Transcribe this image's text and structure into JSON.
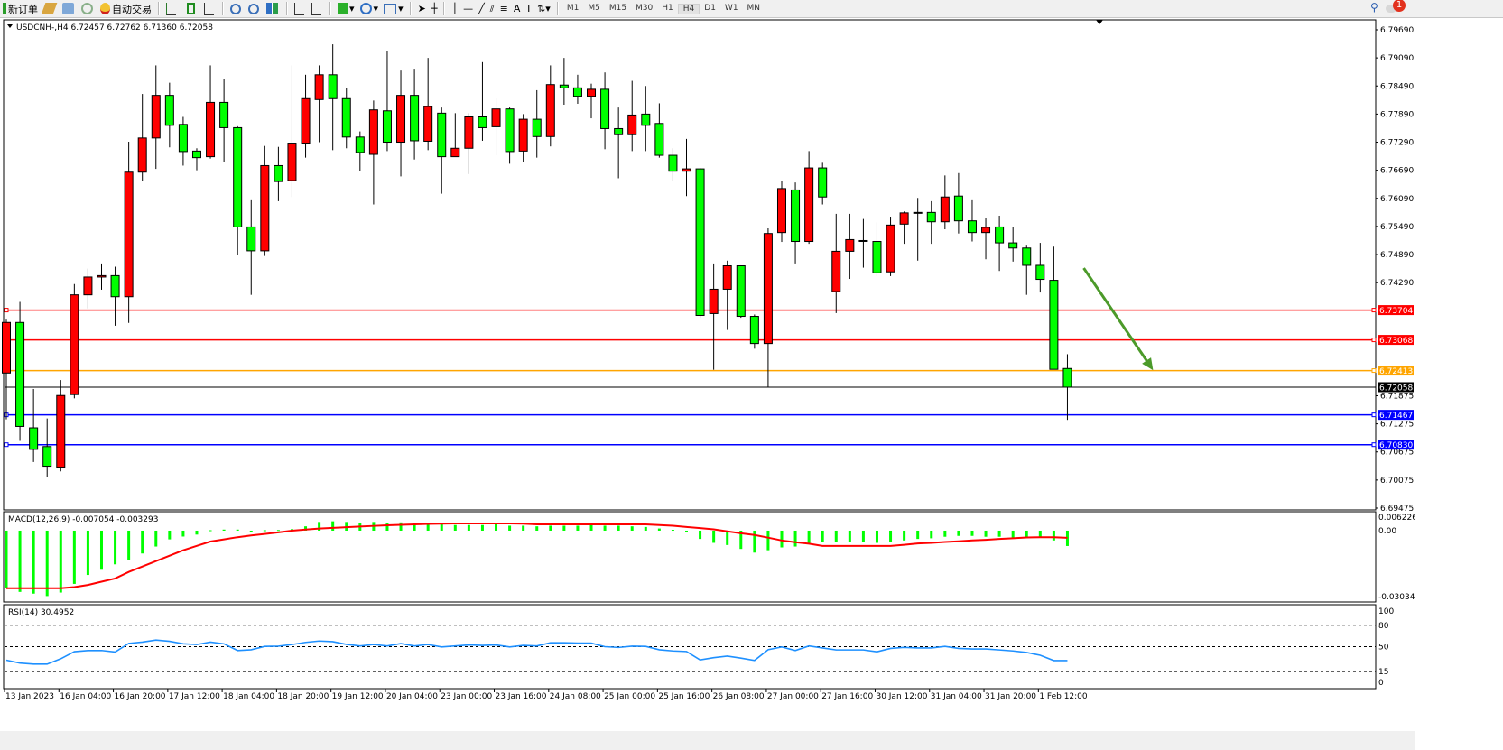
{
  "toolbar": {
    "new_order": "新订单",
    "auto_trading": "自动交易",
    "timeframes": [
      "M1",
      "M5",
      "M15",
      "M30",
      "H1",
      "H4",
      "D1",
      "W1",
      "MN"
    ],
    "active_timeframe": "H4",
    "notification_count": "1",
    "icons": [
      "new-order-icon",
      "strategy-folder-icon",
      "market-watch-icon",
      "signal-icon",
      "auto-trading-icon",
      "bar-chart-icon",
      "candlestick-icon",
      "line-chart-icon",
      "zoom-in-icon",
      "zoom-out-icon",
      "tile-windows-icon",
      "auto-scroll-icon",
      "chart-shift-icon",
      "indicators-icon",
      "periods-icon",
      "templates-icon",
      "cursor-icon",
      "crosshair-icon",
      "vertical-line-icon",
      "horizontal-line-icon",
      "trendline-icon",
      "equidistant-channel-icon",
      "fibonacci-icon",
      "text-icon",
      "text-label-icon",
      "arrows-icon",
      "search-icon",
      "chat-icon"
    ]
  },
  "chart_data": {
    "type": "candlestick",
    "header": "USDCNH-,H4  6.72457 6.72762 6.71360 6.72058",
    "colors": {
      "bull": "#ff0000",
      "bear": "#00ff00",
      "outline": "#000000",
      "macd_hist": "#00ff00",
      "macd_signal": "#ff0000",
      "rsi": "#1e90ff",
      "arrow": "#4c9a2a"
    },
    "candles_ohlc": [
      [
        6.7236,
        6.735,
        6.7137,
        6.7344
      ],
      [
        6.7344,
        6.7388,
        6.7091,
        6.7122
      ],
      [
        6.7119,
        6.7202,
        6.7046,
        6.7073
      ],
      [
        6.7079,
        6.7139,
        6.7013,
        6.7037
      ],
      [
        6.7035,
        6.7221,
        6.7026,
        6.7188
      ],
      [
        6.719,
        6.7426,
        6.7182,
        6.7403
      ],
      [
        6.7403,
        6.7459,
        6.7374,
        6.7441
      ],
      [
        6.7441,
        6.747,
        6.7414,
        6.7444
      ],
      [
        6.7444,
        6.7463,
        6.7337,
        6.7399
      ],
      [
        6.7399,
        6.773,
        6.7343,
        6.7665
      ],
      [
        6.7665,
        6.7832,
        6.7647,
        6.7738
      ],
      [
        6.7738,
        6.7893,
        6.7672,
        6.7829
      ],
      [
        6.7829,
        6.7856,
        6.7718,
        6.7765
      ],
      [
        6.7767,
        6.7783,
        6.7679,
        6.7709
      ],
      [
        6.771,
        6.7716,
        6.7669,
        6.7696
      ],
      [
        6.7698,
        6.7893,
        6.7694,
        6.7814
      ],
      [
        6.7814,
        6.7863,
        6.7687,
        6.776
      ],
      [
        6.776,
        6.7763,
        6.7488,
        6.7548
      ],
      [
        6.7548,
        6.7605,
        6.7403,
        6.7497
      ],
      [
        6.7497,
        6.7721,
        6.7486,
        6.7679
      ],
      [
        6.7679,
        6.7719,
        6.7603,
        6.7645
      ],
      [
        6.7647,
        6.7893,
        6.7612,
        6.7727
      ],
      [
        6.7727,
        6.7873,
        6.7696,
        6.7822
      ],
      [
        6.782,
        6.7893,
        6.7729,
        6.7873
      ],
      [
        6.7873,
        6.7938,
        6.7712,
        6.7822
      ],
      [
        6.7822,
        6.7845,
        6.7716,
        6.774
      ],
      [
        6.774,
        6.7752,
        6.7667,
        6.7707
      ],
      [
        6.7703,
        6.7818,
        6.7596,
        6.7798
      ],
      [
        6.7796,
        6.7924,
        6.771,
        6.7729
      ],
      [
        6.7729,
        6.7882,
        6.7656,
        6.7829
      ],
      [
        6.7829,
        6.7884,
        6.7692,
        6.7732
      ],
      [
        6.7731,
        6.7909,
        6.7712,
        6.7805
      ],
      [
        6.7791,
        6.7803,
        6.7619,
        6.7698
      ],
      [
        6.7698,
        6.7791,
        6.7698,
        6.7716
      ],
      [
        6.7716,
        6.7791,
        6.7661,
        6.7783
      ],
      [
        6.7783,
        6.79,
        6.7732,
        6.776
      ],
      [
        6.7762,
        6.7823,
        6.7701,
        6.78
      ],
      [
        6.78,
        6.7803,
        6.7683,
        6.7709
      ],
      [
        6.771,
        6.7789,
        6.7687,
        6.7778
      ],
      [
        6.7778,
        6.784,
        6.7696,
        6.7741
      ],
      [
        6.7741,
        6.7893,
        6.772,
        6.7852
      ],
      [
        6.7851,
        6.7909,
        6.7809,
        6.7845
      ],
      [
        6.7845,
        6.7873,
        6.7811,
        6.7827
      ],
      [
        6.7827,
        6.7854,
        6.778,
        6.7842
      ],
      [
        6.7842,
        6.7878,
        6.7714,
        6.7758
      ],
      [
        6.7758,
        6.7803,
        6.7652,
        6.7745
      ],
      [
        6.7745,
        6.786,
        6.771,
        6.7787
      ],
      [
        6.7789,
        6.7849,
        6.771,
        6.7765
      ],
      [
        6.7769,
        6.7812,
        6.7696,
        6.7701
      ],
      [
        6.7701,
        6.7716,
        6.7647,
        6.7667
      ],
      [
        6.7667,
        6.7736,
        6.7614,
        6.7672
      ],
      [
        6.7672,
        6.7674,
        6.7354,
        6.7359
      ],
      [
        6.7363,
        6.747,
        6.7243,
        6.7415
      ],
      [
        6.7415,
        6.7476,
        6.7328,
        6.7465
      ],
      [
        6.7465,
        6.7466,
        6.7354,
        6.7357
      ],
      [
        6.7357,
        6.7361,
        6.7288,
        6.7299
      ],
      [
        6.7299,
        6.7545,
        6.7206,
        6.7534
      ],
      [
        6.7536,
        6.7647,
        6.7516,
        6.763
      ],
      [
        6.7627,
        6.7643,
        6.747,
        6.7517
      ],
      [
        6.7517,
        6.771,
        6.7512,
        6.7674
      ],
      [
        6.7674,
        6.7685,
        6.7596,
        6.7612
      ],
      [
        6.741,
        6.7576,
        6.7364,
        6.7496
      ],
      [
        6.7496,
        6.7576,
        6.7437,
        6.7521
      ],
      [
        6.7519,
        6.7565,
        6.7461,
        6.7519
      ],
      [
        6.7517,
        6.7558,
        6.7443,
        6.745
      ],
      [
        6.7452,
        6.757,
        6.7443,
        6.7552
      ],
      [
        6.7554,
        6.7581,
        6.7512,
        6.7578
      ],
      [
        6.7579,
        6.761,
        6.7476,
        6.7579
      ],
      [
        6.7579,
        6.7603,
        6.7512,
        6.7559
      ],
      [
        6.7559,
        6.7658,
        6.7543,
        6.7612
      ],
      [
        6.7614,
        6.7663,
        6.7534,
        6.7561
      ],
      [
        6.7561,
        6.7605,
        6.7517,
        6.7536
      ],
      [
        6.7536,
        6.7568,
        6.7479,
        6.7547
      ],
      [
        6.7548,
        6.7572,
        6.7454,
        6.7514
      ],
      [
        6.7514,
        6.7548,
        6.7474,
        6.7503
      ],
      [
        6.7503,
        6.7508,
        6.7403,
        6.7466
      ],
      [
        6.7466,
        6.7514,
        6.7408,
        6.7436
      ],
      [
        6.7434,
        6.7506,
        6.7244,
        6.7244
      ],
      [
        6.72457,
        6.72762,
        6.7136,
        6.72058
      ]
    ],
    "price_ticks": [
      "6.79690",
      "6.79090",
      "6.78490",
      "6.77890",
      "6.77290",
      "6.76690",
      "6.76090",
      "6.75490",
      "6.74890",
      "6.74290",
      "6.71875",
      "6.71275",
      "6.70675",
      "6.70075",
      "6.69475"
    ],
    "price_range": [
      6.69475,
      6.7969
    ],
    "horizontal_lines": [
      {
        "price": "6.73704",
        "color": "#ff0000"
      },
      {
        "price": "6.73068",
        "color": "#ff0000"
      },
      {
        "price": "6.72413",
        "color": "#ffa500"
      },
      {
        "price": "6.71467",
        "color": "#0000ff"
      },
      {
        "price": "6.70830",
        "color": "#0000ff"
      }
    ],
    "current_price": {
      "price": "6.72058",
      "color": "#000000"
    },
    "arrow": {
      "from": [
        79.2,
        6.746
      ],
      "to": [
        84.3,
        6.7242
      ]
    },
    "time_labels": [
      "13 Jan 2023",
      "16 Jan 04:00",
      "16 Jan 20:00",
      "17 Jan 12:00",
      "18 Jan 04:00",
      "18 Jan 20:00",
      "19 Jan 12:00",
      "20 Jan 04:00",
      "23 Jan 00:00",
      "23 Jan 16:00",
      "24 Jan 08:00",
      "25 Jan 00:00",
      "25 Jan 16:00",
      "26 Jan 08:00",
      "27 Jan 00:00",
      "27 Jan 16:00",
      "30 Jan 12:00",
      "31 Jan 04:00",
      "31 Jan 20:00",
      "1 Feb 12:00"
    ],
    "macd": {
      "label": "MACD(12,26,9) -0.007054 -0.003293",
      "ticks": [
        "0.006226",
        "0.00",
        "-0.030347"
      ],
      "range": [
        -0.030347,
        0.006226
      ],
      "main": [
        -0.0265,
        -0.0282,
        -0.029,
        -0.0301,
        -0.0285,
        -0.0245,
        -0.0204,
        -0.018,
        -0.0155,
        -0.0135,
        -0.0105,
        -0.0073,
        -0.004,
        -0.0027,
        -0.0018,
        0.0002,
        0.0005,
        0.0005,
        -0.0006,
        0.0002,
        0.0003,
        0.0007,
        0.002,
        0.004,
        0.0043,
        0.004,
        0.0036,
        0.004,
        0.0036,
        0.0038,
        0.0036,
        0.0032,
        0.0029,
        0.0026,
        0.0026,
        0.0026,
        0.0029,
        0.0023,
        0.0023,
        0.002,
        0.0023,
        0.0023,
        0.0023,
        0.0035,
        0.0023,
        0.0023,
        0.002,
        0.0017,
        0.001,
        0.0004,
        -0.0007,
        -0.0038,
        -0.0056,
        -0.0066,
        -0.0084,
        -0.0101,
        -0.009,
        -0.0077,
        -0.0073,
        -0.0059,
        -0.0052,
        -0.0052,
        -0.0052,
        -0.0052,
        -0.0056,
        -0.0052,
        -0.0045,
        -0.0038,
        -0.0035,
        -0.0028,
        -0.0024,
        -0.0024,
        -0.0028,
        -0.0028,
        -0.0035,
        -0.003,
        -0.003,
        -0.0045,
        -0.007054
      ],
      "signal": [
        -0.0265,
        -0.0265,
        -0.0265,
        -0.0265,
        -0.0265,
        -0.026,
        -0.025,
        -0.0235,
        -0.022,
        -0.019,
        -0.0165,
        -0.014,
        -0.0115,
        -0.009,
        -0.007,
        -0.005,
        -0.004,
        -0.003,
        -0.0022,
        -0.0015,
        -0.0008,
        0,
        0.0005,
        0.001,
        0.0013,
        0.0016,
        0.0019,
        0.0022,
        0.0025,
        0.0027,
        0.0029,
        0.0031,
        0.0032,
        0.0033,
        0.0033,
        0.0033,
        0.0033,
        0.0033,
        0.0032,
        0.0029,
        0.0029,
        0.0029,
        0.0029,
        0.0029,
        0.0029,
        0.0029,
        0.0029,
        0.0029,
        0.0026,
        0.0023,
        0.0017,
        0.0012,
        0.0006,
        -0.0003,
        -0.0012,
        -0.002,
        -0.0032,
        -0.0045,
        -0.0053,
        -0.006,
        -0.007,
        -0.007,
        -0.007,
        -0.007,
        -0.007,
        -0.007,
        -0.0065,
        -0.0059,
        -0.0056,
        -0.0052,
        -0.0049,
        -0.0045,
        -0.0042,
        -0.0038,
        -0.0035,
        -0.0031,
        -0.003,
        -0.003,
        -0.003293
      ]
    },
    "rsi": {
      "label": "RSI(14) 30.4952",
      "ticks": [
        "100",
        "80",
        "50",
        "15",
        "0"
      ],
      "levels": [
        80,
        50,
        15
      ],
      "range": [
        0,
        100
      ],
      "values": [
        31,
        27,
        25.5,
        25.5,
        33,
        43,
        44.6,
        44.6,
        42.5,
        54.6,
        56.4,
        59.3,
        57.5,
        54,
        53,
        56.4,
        54,
        44.6,
        45.7,
        50.4,
        50.7,
        53,
        56,
        57.9,
        57,
        53.2,
        51,
        53,
        51,
        54.3,
        51,
        53,
        49.6,
        51,
        52.5,
        51.8,
        52.5,
        49.6,
        51.8,
        51,
        55.4,
        55.4,
        55,
        55,
        50,
        48.9,
        50.7,
        50.4,
        45.7,
        44,
        43.2,
        31.4,
        34.6,
        36.8,
        33.9,
        30.7,
        45.7,
        49.6,
        44.6,
        51,
        48.2,
        45.4,
        45.4,
        45.4,
        42.8,
        47.5,
        49,
        48.2,
        48.2,
        50.4,
        47.5,
        46.8,
        46.8,
        45.4,
        44,
        41.8,
        38,
        30.5,
        30.4952
      ]
    }
  }
}
